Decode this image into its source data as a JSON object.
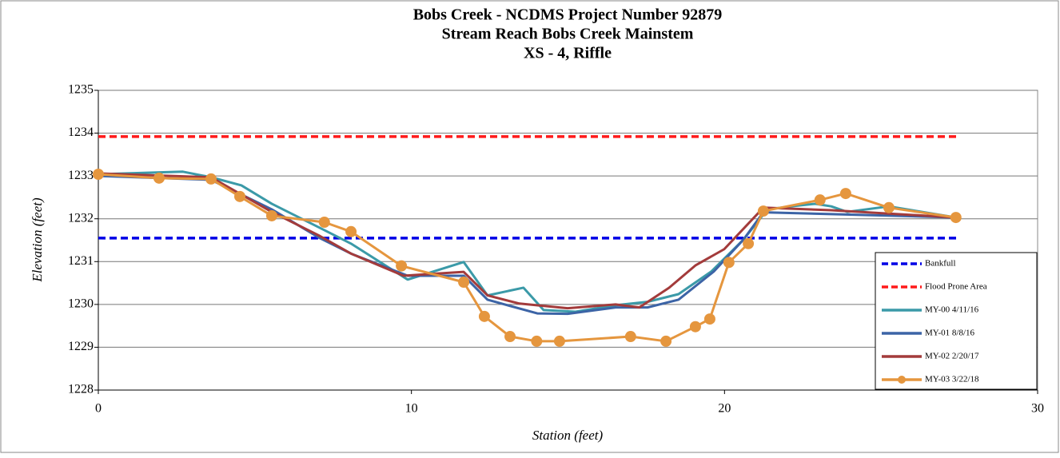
{
  "chart_data": {
    "type": "line",
    "title": [
      "Bobs Creek - NCDMS Project Number 92879",
      "Stream Reach Bobs Creek Mainstem",
      "XS - 4, Riffle"
    ],
    "x_label": "Station (feet)",
    "y_label": "Elevation (feet)",
    "xlim": [
      0,
      30
    ],
    "xticks": [
      0,
      10,
      20,
      30
    ],
    "ylim": [
      1228,
      1235
    ],
    "yticks": [
      1228,
      1229,
      1230,
      1231,
      1232,
      1233,
      1234,
      1235
    ],
    "grid": true,
    "legend": "lower right",
    "series": [
      {
        "name": "Bankfull",
        "color": "#0000e6",
        "dashed": true,
        "x": [
          0,
          27.4
        ],
        "values": [
          1231.55,
          1231.55
        ]
      },
      {
        "name": "Flood Prone Area",
        "color": "#ff1a1a",
        "dashed": true,
        "x": [
          0,
          27.4
        ],
        "values": [
          1233.92,
          1233.92
        ]
      },
      {
        "name": "MY-00 4/11/16",
        "color": "#3b9aa8",
        "x": [
          0,
          2.7,
          3.6,
          4.57,
          5.54,
          7.07,
          8.07,
          9.88,
          11.67,
          12.43,
          13.58,
          14.22,
          15.24,
          16.52,
          17.54,
          18.53,
          19.58,
          20.6,
          21.37,
          22.13,
          22.9,
          23.41,
          23.92,
          25.25,
          27.39
        ],
        "values": [
          1233.04,
          1233.1,
          1232.97,
          1232.78,
          1232.35,
          1231.79,
          1231.42,
          1230.58,
          1230.99,
          1230.21,
          1230.39,
          1229.87,
          1229.83,
          1229.98,
          1230.06,
          1230.24,
          1230.77,
          1231.51,
          1232.22,
          1232.29,
          1232.35,
          1232.29,
          1232.16,
          1232.29,
          1232.03
        ]
      },
      {
        "name": "MY-01 8/8/16",
        "color": "#3c64a6",
        "x": [
          0,
          3.6,
          5.54,
          7.07,
          8.09,
          9.88,
          11.67,
          12.43,
          14.02,
          14.99,
          16.52,
          17.54,
          18.53,
          19.66,
          20.6,
          21.24,
          23.41,
          27.39
        ],
        "values": [
          1233.0,
          1232.91,
          1232.22,
          1231.55,
          1231.18,
          1230.67,
          1230.67,
          1230.11,
          1229.79,
          1229.78,
          1229.93,
          1229.93,
          1230.11,
          1230.77,
          1231.51,
          1232.15,
          1232.11,
          1232.03
        ]
      },
      {
        "name": "MY-02 2/20/17",
        "color": "#a33b3b",
        "x": [
          0,
          3.6,
          5.54,
          7.07,
          8.09,
          9.75,
          11.67,
          12.43,
          13.45,
          14.99,
          16.52,
          17.28,
          18.23,
          19.07,
          19.99,
          21.24,
          23.41,
          27.39
        ],
        "values": [
          1233.06,
          1232.97,
          1232.16,
          1231.6,
          1231.18,
          1230.67,
          1230.76,
          1230.21,
          1230.02,
          1229.91,
          1230.0,
          1229.93,
          1230.39,
          1230.91,
          1231.29,
          1232.26,
          1232.2,
          1232.03
        ]
      },
      {
        "name": "MY-03 3/22/18",
        "color": "#e5963e",
        "marker": true,
        "x": [
          0,
          1.94,
          3.6,
          4.52,
          5.54,
          7.22,
          8.07,
          9.68,
          11.67,
          12.33,
          13.15,
          14.0,
          14.73,
          17.0,
          18.13,
          19.07,
          19.53,
          20.14,
          20.76,
          21.24,
          23.05,
          23.87,
          25.25,
          27.39
        ],
        "values": [
          1233.04,
          1232.95,
          1232.93,
          1232.52,
          1232.07,
          1231.92,
          1231.7,
          1230.9,
          1230.52,
          1229.72,
          1229.25,
          1229.14,
          1229.14,
          1229.25,
          1229.14,
          1229.48,
          1229.66,
          1230.98,
          1231.42,
          1232.18,
          1232.44,
          1232.59,
          1232.26,
          1232.03
        ]
      }
    ]
  }
}
